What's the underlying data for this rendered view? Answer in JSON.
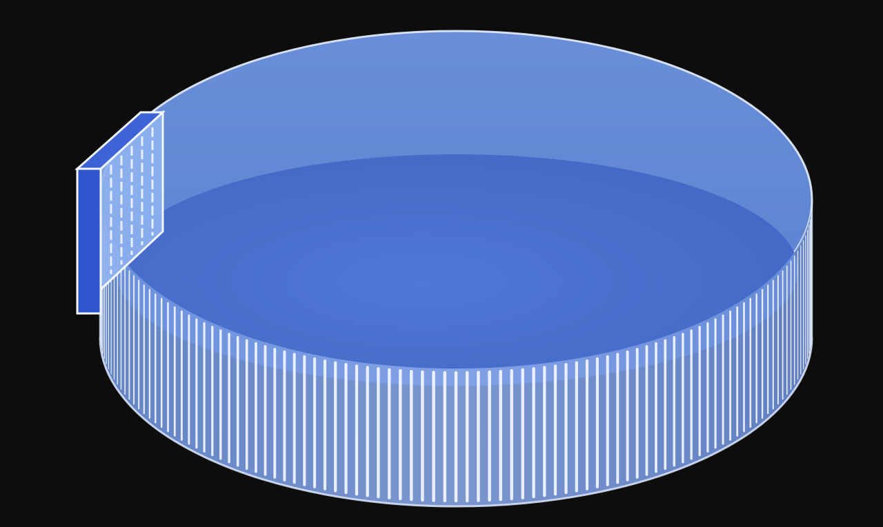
{
  "scene": {
    "background_color": "#0d0d0d",
    "components": [
      {
        "name": "transparent-cylindrical-tank",
        "color": "#8fb3ef"
      },
      {
        "name": "water-fill",
        "color": "#4a72d0"
      },
      {
        "name": "slotted-side-wall",
        "stripe_color": "#f3f7ff",
        "stripe_count": 100
      },
      {
        "name": "detached-wall-panel",
        "color": "#3d63d6"
      }
    ]
  }
}
